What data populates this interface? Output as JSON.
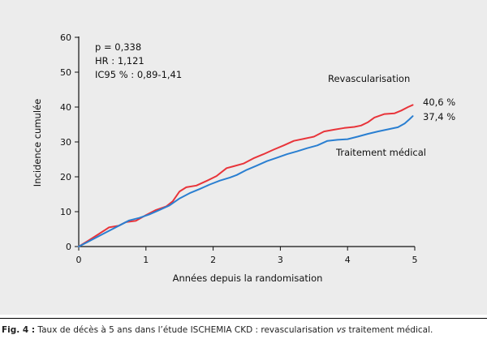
{
  "chart_data": {
    "type": "line",
    "title": "",
    "xlabel": "Années depuis la randomisation",
    "ylabel": "Incidence cumulée",
    "xlim": [
      0,
      5
    ],
    "ylim": [
      0,
      60
    ],
    "xticks": [
      0,
      1,
      2,
      3,
      4,
      5
    ],
    "yticks": [
      0,
      10,
      20,
      30,
      40,
      50,
      60
    ],
    "grid": false,
    "annotations": [
      "p = 0,338",
      "HR : 1,121",
      "IC95 % : 0,89-1,41"
    ],
    "series": [
      {
        "name": "Revascularisation",
        "color": "#e8343a",
        "end_label": "40,6 %",
        "x": [
          0,
          0.15,
          0.3,
          0.45,
          0.6,
          0.7,
          0.85,
          1.0,
          1.15,
          1.3,
          1.4,
          1.5,
          1.6,
          1.75,
          1.9,
          2.05,
          2.2,
          2.3,
          2.45,
          2.6,
          2.75,
          2.9,
          3.05,
          3.2,
          3.35,
          3.5,
          3.65,
          3.8,
          3.95,
          4.1,
          4.2,
          4.3,
          4.4,
          4.55,
          4.7,
          4.8,
          4.9,
          4.97
        ],
        "y": [
          0,
          1.8,
          3.6,
          5.5,
          6.0,
          7.0,
          7.4,
          9.0,
          10.5,
          11.5,
          13.0,
          15.8,
          17.0,
          17.5,
          18.8,
          20.2,
          22.5,
          23.0,
          23.8,
          25.3,
          26.5,
          27.8,
          29.0,
          30.3,
          30.9,
          31.5,
          33.0,
          33.5,
          34.0,
          34.3,
          34.7,
          35.6,
          37.0,
          38.0,
          38.2,
          39.0,
          40.0,
          40.6
        ]
      },
      {
        "name": "Traitement médical",
        "color": "#2a7fd1",
        "end_label": "37,4 %",
        "x": [
          0,
          0.15,
          0.3,
          0.45,
          0.6,
          0.75,
          0.9,
          1.05,
          1.2,
          1.35,
          1.5,
          1.65,
          1.8,
          1.95,
          2.1,
          2.25,
          2.35,
          2.5,
          2.65,
          2.8,
          2.95,
          3.1,
          3.25,
          3.4,
          3.55,
          3.7,
          3.85,
          4.0,
          4.15,
          4.3,
          4.45,
          4.6,
          4.75,
          4.85,
          4.92,
          4.97
        ],
        "y": [
          0,
          1.5,
          3.0,
          4.5,
          6.0,
          7.5,
          8.2,
          9.2,
          10.5,
          11.8,
          13.8,
          15.3,
          16.5,
          17.8,
          18.9,
          19.8,
          20.5,
          22.0,
          23.2,
          24.5,
          25.5,
          26.5,
          27.3,
          28.2,
          29.0,
          30.3,
          30.6,
          30.8,
          31.5,
          32.3,
          33.0,
          33.6,
          34.2,
          35.3,
          36.5,
          37.4
        ]
      }
    ]
  },
  "caption": {
    "label": "Fig. 4 :",
    "text_before": " Taux de décès à 5 ans dans l’étude ISCHEMIA CKD : revascularisation ",
    "italic": "vs",
    "text_after": " traitement médical."
  }
}
